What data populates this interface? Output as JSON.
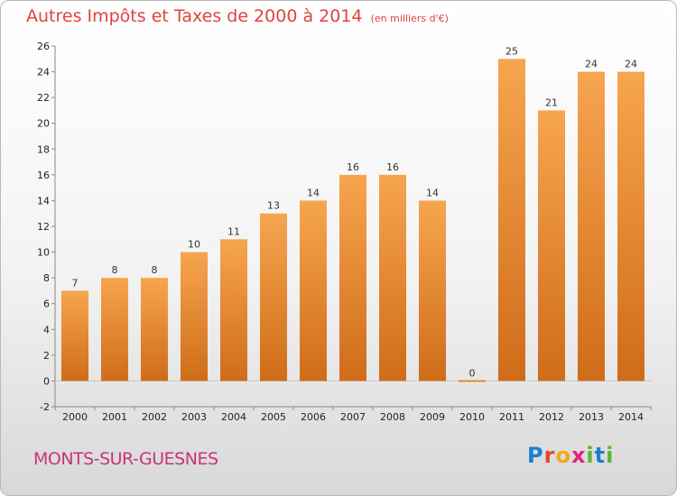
{
  "header": {
    "title": "Autres Impôts et Taxes de 2000 à 2014",
    "unit": "(en milliers d'€)"
  },
  "footer": {
    "commune": "MONTS-SUR-GUESNES",
    "logo_letters": [
      "P",
      "r",
      "o",
      "x",
      "i",
      "t",
      "i"
    ],
    "logo_colors": [
      "#1a7fcf",
      "#e8462a",
      "#f2a81b",
      "#e3237a",
      "#5bb233",
      "#1a7fcf",
      "#5bb233"
    ]
  },
  "chart_data": {
    "type": "bar",
    "categories": [
      "2000",
      "2001",
      "2002",
      "2003",
      "2004",
      "2005",
      "2006",
      "2007",
      "2008",
      "2009",
      "2010",
      "2011",
      "2012",
      "2013",
      "2014"
    ],
    "values": [
      7,
      8,
      8,
      10,
      11,
      13,
      14,
      16,
      16,
      14,
      0,
      25,
      21,
      24,
      24
    ],
    "value_labels": [
      "7",
      "8",
      "8",
      "10",
      "11",
      "13",
      "14",
      "16",
      "16",
      "14",
      "0",
      "25",
      "21",
      "24",
      "24"
    ],
    "ylim": [
      -2,
      26
    ],
    "yticks": [
      "-2",
      "0",
      "2",
      "4",
      "6",
      "8",
      "10",
      "12",
      "14",
      "16",
      "18",
      "20",
      "22",
      "24",
      "26"
    ],
    "bar_color_light": "#f7a54f",
    "bar_color_dark": "#cf6c19",
    "grid": false
  }
}
